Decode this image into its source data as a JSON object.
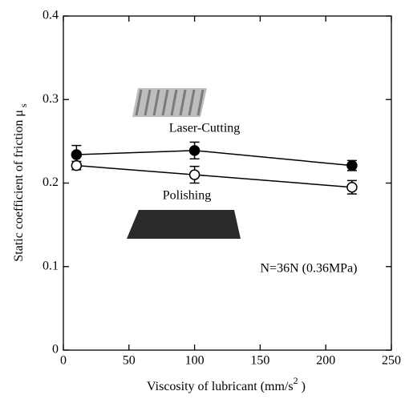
{
  "chart_data": {
    "type": "line",
    "xlabel": "Viscosity of lubricant (mm/s",
    "xlabel_sup": "2",
    "xlabel_end": " )",
    "ylabel": "Static coefficient of friction  μ",
    "ylabel_sub": "s",
    "xlim": [
      0,
      250
    ],
    "xticks": [
      0,
      50,
      100,
      150,
      200,
      250
    ],
    "ylim": [
      0,
      0.4
    ],
    "yticks": [
      0,
      0.1,
      0.2,
      0.3,
      0.4
    ],
    "annotations": [
      "Laser-Cutting",
      "Polishing",
      "N=36N (0.36MPa)"
    ],
    "series": [
      {
        "name": "Laser-Cutting",
        "color": "#000000",
        "marker": "filled",
        "x": [
          10,
          100,
          220
        ],
        "values": [
          0.234,
          0.239,
          0.221
        ],
        "errors": [
          0.011,
          0.01,
          0.006
        ]
      },
      {
        "name": "Polishing",
        "color": "#000000",
        "marker": "open",
        "x": [
          10,
          100,
          220
        ],
        "values": [
          0.221,
          0.21,
          0.195
        ],
        "errors": [
          0.005,
          0.01,
          0.008
        ]
      }
    ]
  }
}
